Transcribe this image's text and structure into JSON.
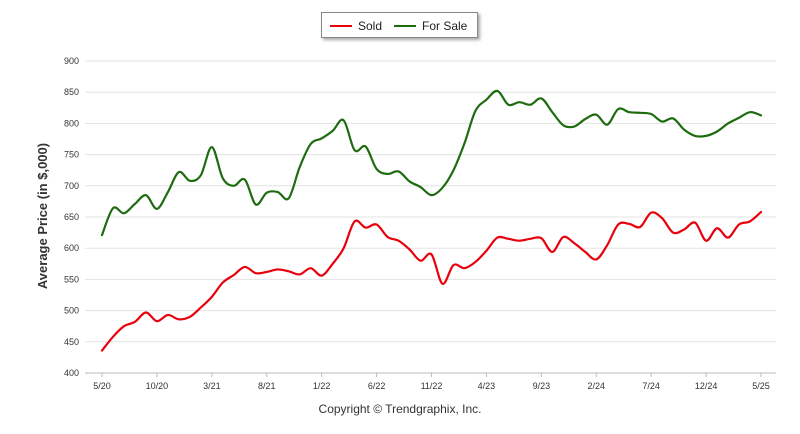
{
  "chart_data": {
    "type": "line",
    "title": "",
    "xlabel": "",
    "ylabel": "Average Price (in $,000)",
    "ylim": [
      400,
      900
    ],
    "yticks": [
      400,
      450,
      500,
      550,
      600,
      650,
      700,
      750,
      800,
      850,
      900
    ],
    "xtick_labels": [
      "5/20",
      "10/20",
      "3/21",
      "8/21",
      "1/22",
      "6/22",
      "11/22",
      "4/23",
      "9/23",
      "2/24",
      "7/24",
      "12/24",
      "5/25"
    ],
    "grid": true,
    "legend_position": "top-center",
    "categories": [
      "5/20",
      "6/20",
      "7/20",
      "8/20",
      "9/20",
      "10/20",
      "11/20",
      "12/20",
      "1/21",
      "2/21",
      "3/21",
      "4/21",
      "5/21",
      "6/21",
      "7/21",
      "8/21",
      "9/21",
      "10/21",
      "11/21",
      "12/21",
      "1/22",
      "2/22",
      "3/22",
      "4/22",
      "5/22",
      "6/22",
      "7/22",
      "8/22",
      "9/22",
      "10/22",
      "11/22",
      "12/22",
      "1/23",
      "2/23",
      "3/23",
      "4/23",
      "5/23",
      "6/23",
      "7/23",
      "8/23",
      "9/23",
      "10/23",
      "11/23",
      "12/23",
      "1/24",
      "2/24",
      "3/24",
      "4/24",
      "5/24",
      "6/24",
      "7/24",
      "8/24",
      "9/24",
      "10/24",
      "11/24",
      "12/24",
      "1/25",
      "2/25",
      "3/25",
      "4/25",
      "5/25"
    ],
    "series": [
      {
        "name": "Sold",
        "color": "#e8000d",
        "values": [
          436,
          458,
          475,
          482,
          497,
          483,
          493,
          486,
          490,
          505,
          522,
          545,
          557,
          570,
          560,
          562,
          566,
          563,
          558,
          568,
          556,
          575,
          600,
          643,
          633,
          638,
          618,
          612,
          598,
          580,
          590,
          543,
          573,
          568,
          578,
          596,
          617,
          615,
          612,
          615,
          616,
          594,
          618,
          608,
          594,
          582,
          605,
          638,
          639,
          634,
          657,
          648,
          625,
          630,
          641,
          612,
          632,
          617,
          638,
          643,
          658
        ]
      },
      {
        "name": "For Sale",
        "color": "#1e6b10",
        "values": [
          621,
          664,
          656,
          671,
          685,
          663,
          690,
          722,
          708,
          717,
          762,
          712,
          700,
          710,
          670,
          689,
          690,
          680,
          730,
          767,
          776,
          788,
          805,
          757,
          763,
          727,
          719,
          723,
          707,
          698,
          685,
          697,
          725,
          768,
          820,
          838,
          852,
          830,
          834,
          830,
          840,
          818,
          797,
          795,
          807,
          814,
          798,
          823,
          818,
          817,
          815,
          803,
          808,
          790,
          780,
          780,
          787,
          800,
          809,
          818,
          813
        ]
      }
    ]
  },
  "footer": {
    "copyright": "Copyright © Trendgraphix, Inc."
  }
}
